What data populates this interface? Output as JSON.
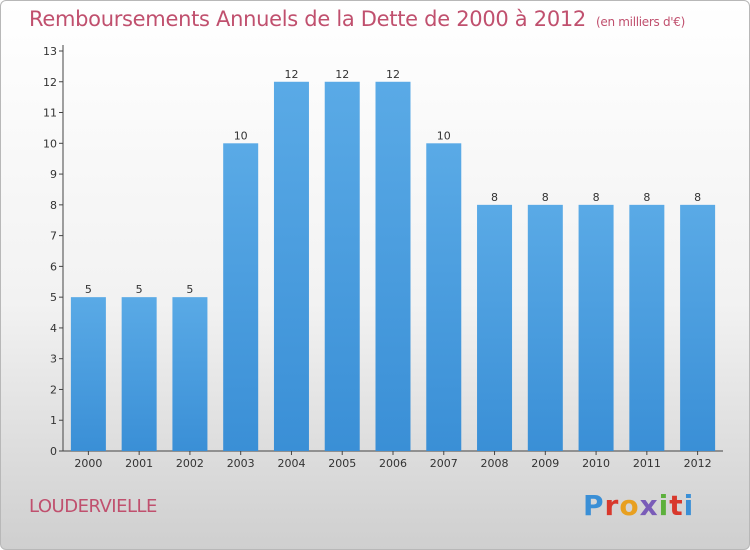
{
  "header": {
    "title": "Remboursements Annuels de la Dette de 2000 à 2012",
    "unit": "(en milliers d'€)"
  },
  "footer": {
    "commune": "LOUDERVIELLE",
    "logo_text": "Proxiti"
  },
  "colors": {
    "bar": "#3a8fd6",
    "bar_top": "#5aaae6",
    "title": "#c0506e",
    "axis": "#444444"
  },
  "chart_data": {
    "type": "bar",
    "categories": [
      "2000",
      "2001",
      "2002",
      "2003",
      "2004",
      "2005",
      "2006",
      "2007",
      "2008",
      "2009",
      "2010",
      "2011",
      "2012"
    ],
    "values": [
      5,
      5,
      5,
      10,
      12,
      12,
      12,
      10,
      8,
      8,
      8,
      8,
      8
    ],
    "value_labels": [
      "5",
      "5",
      "5",
      "10",
      "12",
      "12",
      "12",
      "10",
      "8",
      "8",
      "8",
      "8",
      "8"
    ],
    "y_ticks": [
      "0",
      "1",
      "2",
      "3",
      "4",
      "5",
      "6",
      "7",
      "8",
      "9",
      "10",
      "11",
      "12",
      "13"
    ],
    "ylim": [
      0,
      13
    ],
    "grid": false,
    "legend": "none"
  }
}
